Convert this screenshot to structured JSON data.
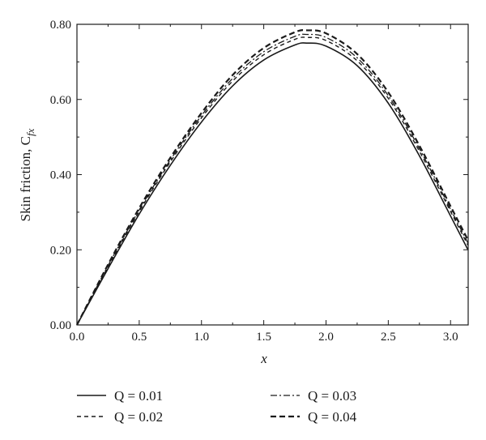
{
  "chart_data": {
    "type": "line",
    "xlabel": "x",
    "ylabel": "Skin friction, C",
    "ylabel_subscript": "fx",
    "xlim": [
      0,
      3.14159
    ],
    "ylim": [
      0,
      0.8
    ],
    "x_ticks": [
      "0.0",
      "0.5",
      "1.0",
      "1.5",
      "2.0",
      "2.5",
      "3.0"
    ],
    "y_ticks": [
      "0.00",
      "0.20",
      "0.40",
      "0.60",
      "0.80"
    ],
    "x_tick_values": [
      0,
      0.5,
      1.0,
      1.5,
      2.0,
      2.5,
      3.0
    ],
    "y_tick_values": [
      0,
      0.2,
      0.4,
      0.6,
      0.8
    ],
    "grid": false,
    "legend_position": "bottom",
    "x": [
      0,
      0.25,
      0.5,
      0.75,
      1.0,
      1.25,
      1.5,
      1.75,
      1.85,
      2.0,
      2.25,
      2.5,
      2.75,
      3.0,
      3.14
    ],
    "series": [
      {
        "name": "Q = 0.01",
        "style": "solid",
        "values": [
          0,
          0.15,
          0.295,
          0.425,
          0.54,
          0.636,
          0.705,
          0.745,
          0.75,
          0.742,
          0.69,
          0.59,
          0.45,
          0.29,
          0.2
        ]
      },
      {
        "name": "Q = 0.02",
        "style": "dashed",
        "values": [
          0,
          0.155,
          0.302,
          0.434,
          0.551,
          0.649,
          0.719,
          0.76,
          0.765,
          0.757,
          0.703,
          0.603,
          0.462,
          0.302,
          0.212
        ]
      },
      {
        "name": "Q = 0.03",
        "style": "dashdot",
        "values": [
          0,
          0.158,
          0.306,
          0.439,
          0.557,
          0.656,
          0.727,
          0.768,
          0.773,
          0.765,
          0.711,
          0.61,
          0.469,
          0.308,
          0.218
        ]
      },
      {
        "name": "Q = 0.04",
        "style": "bolddash",
        "values": [
          0,
          0.161,
          0.311,
          0.445,
          0.564,
          0.665,
          0.737,
          0.779,
          0.784,
          0.776,
          0.721,
          0.619,
          0.477,
          0.316,
          0.226
        ]
      }
    ]
  }
}
